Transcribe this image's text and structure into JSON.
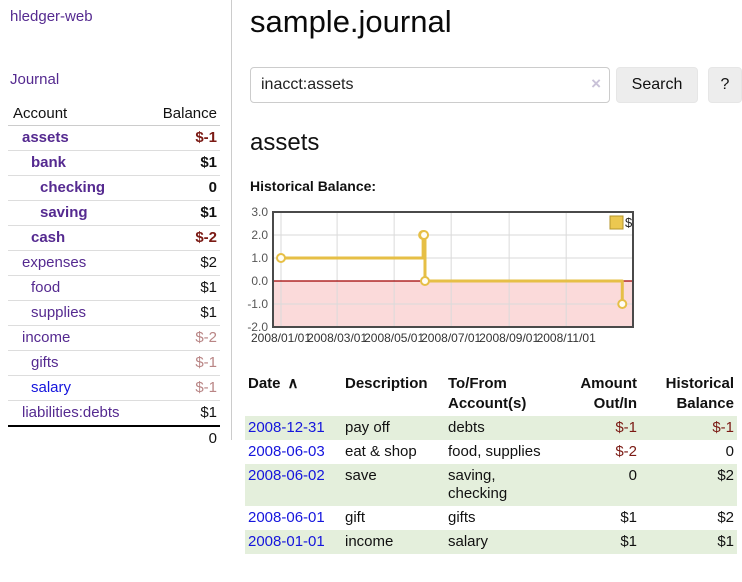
{
  "app": {
    "brand": "hledger-web"
  },
  "sidebar": {
    "nav_journal": "Journal",
    "account_header": "Account",
    "balance_header": "Balance",
    "accounts": [
      {
        "name": "assets",
        "depth": 1,
        "balance": "$-1",
        "bold": true,
        "balance_class": "neg-strong"
      },
      {
        "name": "bank",
        "depth": 2,
        "balance": "$1",
        "bold": true,
        "balance_class": ""
      },
      {
        "name": "checking",
        "depth": 3,
        "balance": "0",
        "bold": true,
        "balance_class": ""
      },
      {
        "name": "saving",
        "depth": 3,
        "balance": "$1",
        "bold": true,
        "balance_class": ""
      },
      {
        "name": "cash",
        "depth": 2,
        "balance": "$-2",
        "bold": true,
        "balance_class": "neg-strong"
      },
      {
        "name": "expenses",
        "depth": 1,
        "balance": "$2",
        "bold": false,
        "balance_class": ""
      },
      {
        "name": "food",
        "depth": 2,
        "balance": "$1",
        "bold": false,
        "balance_class": ""
      },
      {
        "name": "supplies",
        "depth": 2,
        "balance": "$1",
        "bold": false,
        "balance_class": ""
      },
      {
        "name": "income",
        "depth": 1,
        "balance": "$-2",
        "bold": false,
        "balance_class": "neg-soft"
      },
      {
        "name": "gifts",
        "depth": 2,
        "balance": "$-1",
        "bold": false,
        "balance_class": "neg-soft"
      },
      {
        "name": "salary",
        "depth": 2,
        "balance": "$-1",
        "bold": false,
        "balance_class": "neg-soft",
        "link_style": "unvisited"
      },
      {
        "name": "liabilities:debts",
        "depth": 1,
        "balance": "$1",
        "bold": false,
        "balance_class": ""
      }
    ],
    "total": "0"
  },
  "header": {
    "title": "sample.journal"
  },
  "search": {
    "query": "inacct:assets",
    "clear_icon": "×",
    "search_label": "Search",
    "help_label": "?"
  },
  "account_page": {
    "title": "assets",
    "chart_label": "Historical Balance:"
  },
  "chart_data": {
    "type": "line",
    "title": "Historical Balance:",
    "step": true,
    "series": [
      {
        "name": "$",
        "points": [
          [
            "2008-01-01",
            1
          ],
          [
            "2008-06-01",
            2
          ],
          [
            "2008-06-02",
            2
          ],
          [
            "2008-06-03",
            0
          ],
          [
            "2008-12-31",
            -1
          ]
        ]
      }
    ],
    "ylim": [
      -2,
      3
    ],
    "yticks": [
      "3.0",
      "2.0",
      "1.0",
      "0.0",
      "-1.0",
      "-2.0"
    ],
    "xticks": [
      "2008/01/01",
      "2008/03/01",
      "2008/05/01",
      "2008/07/01",
      "2008/09/01",
      "2008/11/01"
    ],
    "legend": {
      "label": "$",
      "position": "top-right"
    },
    "grid": true,
    "line_color": "#e6bf46",
    "marker_fill": "#fffdf5",
    "negative_region_color": "#fbdada",
    "zero_line_color": "#a00000",
    "border_color": "#4a4a4a",
    "grid_color": "#dadada"
  },
  "register": {
    "columns": {
      "date": "Date",
      "description": "Description",
      "accounts": "To/From Account(s)",
      "amount": "Amount Out/In",
      "balance": "Historical Balance"
    },
    "sort_icon": "∧",
    "rows": [
      {
        "date": "2008-12-31",
        "description": "pay off",
        "accounts": "debts",
        "amount": "$-1",
        "balance": "$-1",
        "amount_class": "neg",
        "balance_class": "neg"
      },
      {
        "date": "2008-06-03",
        "description": "eat & shop",
        "accounts": "food, supplies",
        "amount": "$-2",
        "balance": "0",
        "amount_class": "neg",
        "balance_class": ""
      },
      {
        "date": "2008-06-02",
        "description": "save",
        "accounts": "saving, checking",
        "amount": "0",
        "balance": "$2",
        "amount_class": "",
        "balance_class": ""
      },
      {
        "date": "2008-06-01",
        "description": "gift",
        "accounts": "gifts",
        "amount": "$1",
        "balance": "$2",
        "amount_class": "",
        "balance_class": ""
      },
      {
        "date": "2008-01-01",
        "description": "income",
        "accounts": "salary",
        "amount": "$1",
        "balance": "$1",
        "amount_class": "",
        "balance_class": ""
      }
    ]
  },
  "colors": {
    "link_purple": "#552a90",
    "link_blue": "#1515dd",
    "negative_strong": "#7b1a14",
    "negative_soft": "#b98585",
    "row_stripe_green": "#e4efdc",
    "chart_line_gold": "#e6bf46",
    "chart_negative_pink": "#fbdada"
  }
}
